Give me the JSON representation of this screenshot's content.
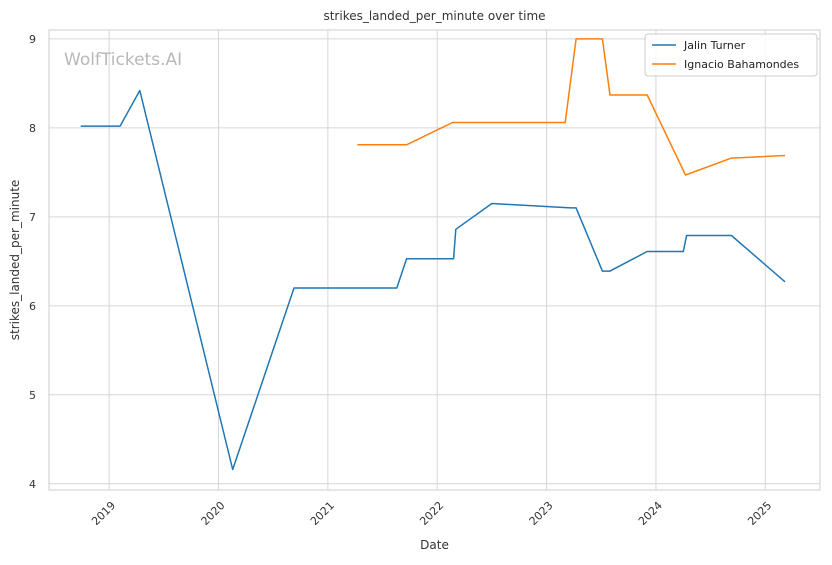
{
  "chart_data": {
    "type": "line",
    "title": "strikes_landed_per_minute over time",
    "xlabel": "Date",
    "ylabel": "strikes_landed_per_minute",
    "watermark": "WolfTickets.AI",
    "x_ticks": [
      "2019",
      "2020",
      "2021",
      "2022",
      "2023",
      "2024",
      "2025"
    ],
    "y_ticks": [
      "4",
      "5",
      "6",
      "7",
      "8",
      "9"
    ],
    "xlim": [
      2018.45,
      2025.5
    ],
    "ylim": [
      3.93,
      9.1
    ],
    "grid": true,
    "legend_position": "top-right",
    "series": [
      {
        "name": "Jalin Turner",
        "color": "#1f77b4",
        "points": [
          [
            2018.74,
            8.02
          ],
          [
            2019.1,
            8.02
          ],
          [
            2019.28,
            8.42
          ],
          [
            2020.13,
            4.16
          ],
          [
            2020.69,
            6.2
          ],
          [
            2021.63,
            6.2
          ],
          [
            2021.72,
            6.53
          ],
          [
            2022.15,
            6.53
          ],
          [
            2022.17,
            6.86
          ],
          [
            2022.5,
            7.15
          ],
          [
            2023.22,
            7.1
          ],
          [
            2023.27,
            7.1
          ],
          [
            2023.51,
            6.39
          ],
          [
            2023.58,
            6.39
          ],
          [
            2023.92,
            6.61
          ],
          [
            2024.25,
            6.61
          ],
          [
            2024.28,
            6.79
          ],
          [
            2024.69,
            6.79
          ],
          [
            2025.18,
            6.27
          ]
        ]
      },
      {
        "name": "Ignacio Bahamondes",
        "color": "#ff7f0e",
        "points": [
          [
            2021.27,
            7.81
          ],
          [
            2021.72,
            7.81
          ],
          [
            2022.14,
            8.06
          ],
          [
            2023.17,
            8.06
          ],
          [
            2023.27,
            9.0
          ],
          [
            2023.51,
            9.0
          ],
          [
            2023.58,
            8.37
          ],
          [
            2023.92,
            8.37
          ],
          [
            2024.27,
            7.47
          ],
          [
            2024.69,
            7.66
          ],
          [
            2025.18,
            7.69
          ]
        ]
      }
    ]
  }
}
